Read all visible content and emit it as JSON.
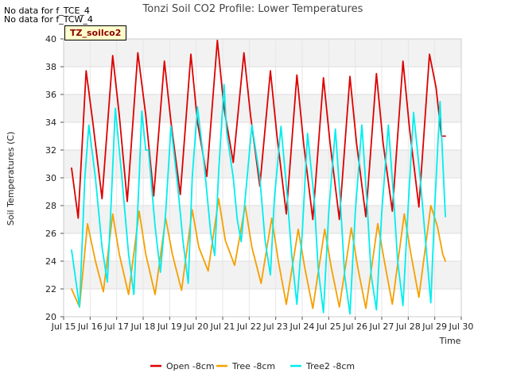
{
  "notices": [
    "No data for f_TCE_4",
    "No data for f_TCW_4"
  ],
  "site_badge": "TZ_soilco2",
  "chart_data": {
    "type": "line",
    "title": "Tonzi Soil CO2 Profile: Lower Temperatures",
    "xlabel": "Time",
    "ylabel": "Soil Temperatures (C)",
    "xlim": [
      15,
      30
    ],
    "ylim": [
      20,
      40
    ],
    "x_ticks": [
      15,
      16,
      17,
      18,
      19,
      20,
      21,
      22,
      23,
      24,
      25,
      26,
      27,
      28,
      29,
      30
    ],
    "x_tick_labels": [
      "Jul 15",
      "Jul 16",
      "Jul 17",
      "Jul 18",
      "Jul 19",
      "Jul 20",
      "Jul 21",
      "Jul 22",
      "Jul 23",
      "Jul 24",
      "Jul 25",
      "Jul 26",
      "Jul 27",
      "Jul 28",
      "Jul 29",
      "Jul 30"
    ],
    "y_ticks": [
      20,
      22,
      24,
      26,
      28,
      30,
      32,
      34,
      36,
      38,
      40
    ],
    "grid": true,
    "legend": "bottom-center",
    "series": [
      {
        "name": "Open -8cm",
        "color": "#dd0000",
        "x": [
          15.3,
          15.55,
          15.85,
          16.1,
          16.45,
          16.85,
          17.1,
          17.4,
          17.8,
          18.1,
          18.4,
          18.8,
          19.05,
          19.4,
          19.8,
          20.05,
          20.4,
          20.8,
          21.05,
          21.4,
          21.8,
          22.05,
          22.4,
          22.8,
          23.05,
          23.4,
          23.8,
          24.05,
          24.4,
          24.8,
          25.05,
          25.4,
          25.8,
          26.05,
          26.4,
          26.8,
          27.05,
          27.4,
          27.8,
          28.05,
          28.4,
          28.8,
          29.05,
          29.25,
          29.4
        ],
        "y": [
          30.7,
          27.1,
          37.7,
          34.0,
          28.5,
          38.8,
          34.5,
          28.3,
          39.0,
          34.5,
          28.7,
          38.4,
          34.0,
          28.8,
          38.9,
          34.0,
          30.1,
          39.9,
          35.0,
          31.1,
          39.0,
          34.5,
          29.4,
          37.7,
          33.0,
          27.4,
          37.4,
          32.5,
          27.0,
          37.2,
          32.5,
          27.0,
          37.3,
          32.5,
          27.2,
          37.5,
          32.5,
          27.6,
          38.4,
          33.5,
          27.9,
          38.9,
          36.5,
          33.0,
          33.0
        ]
      },
      {
        "name": "Tree -8cm",
        "color": "#f5a000",
        "x": [
          15.3,
          15.6,
          15.9,
          16.2,
          16.5,
          16.85,
          17.1,
          17.45,
          17.85,
          18.1,
          18.45,
          18.85,
          19.1,
          19.45,
          19.85,
          20.1,
          20.45,
          20.85,
          21.1,
          21.45,
          21.85,
          22.1,
          22.45,
          22.85,
          23.1,
          23.4,
          23.85,
          24.1,
          24.4,
          24.85,
          25.1,
          25.4,
          25.85,
          26.1,
          26.4,
          26.85,
          27.1,
          27.4,
          27.85,
          28.1,
          28.4,
          28.85,
          29.1,
          29.3,
          29.4
        ],
        "y": [
          22.0,
          20.7,
          26.7,
          24.0,
          21.8,
          27.4,
          24.5,
          21.6,
          27.6,
          24.5,
          21.6,
          27.1,
          24.5,
          21.9,
          27.7,
          25.0,
          23.3,
          28.5,
          25.5,
          23.7,
          28.0,
          25.0,
          22.4,
          27.1,
          24.0,
          20.9,
          26.3,
          23.5,
          20.6,
          26.3,
          23.5,
          20.7,
          26.4,
          23.5,
          20.6,
          26.7,
          24.0,
          20.9,
          27.4,
          24.5,
          21.4,
          28.0,
          26.5,
          24.5,
          24.0
        ]
      },
      {
        "name": "Tree2 -8cm",
        "color": "#00eeee",
        "x": [
          15.3,
          15.6,
          15.8,
          15.95,
          16.2,
          16.45,
          16.65,
          16.8,
          16.95,
          17.2,
          17.45,
          17.65,
          17.85,
          17.95,
          18.1,
          18.2,
          18.45,
          18.65,
          18.85,
          19.05,
          19.3,
          19.5,
          19.7,
          19.85,
          20.05,
          20.3,
          20.55,
          20.7,
          20.85,
          21.05,
          21.15,
          21.4,
          21.55,
          21.7,
          21.85,
          22.1,
          22.4,
          22.6,
          22.8,
          22.95,
          23.2,
          23.4,
          23.6,
          23.8,
          24.0,
          24.2,
          24.45,
          24.6,
          24.8,
          25.0,
          25.25,
          25.45,
          25.6,
          25.8,
          26.0,
          26.25,
          26.45,
          26.6,
          26.8,
          27.0,
          27.25,
          27.45,
          27.6,
          27.8,
          28.0,
          28.2,
          28.45,
          28.65,
          28.85,
          29.0,
          29.2,
          29.4
        ],
        "y": [
          24.8,
          20.7,
          30.0,
          33.8,
          30.0,
          25.0,
          22.5,
          28.5,
          35.0,
          30.0,
          24.5,
          21.6,
          30.0,
          34.8,
          32.0,
          32.0,
          26.5,
          23.2,
          27.5,
          33.7,
          29.5,
          25.5,
          22.4,
          30.0,
          35.1,
          31.0,
          26.0,
          24.4,
          30.5,
          36.7,
          33.3,
          30.0,
          27.0,
          25.4,
          28.5,
          33.8,
          30.0,
          25.5,
          23.0,
          28.5,
          33.7,
          29.5,
          24.5,
          20.9,
          26.0,
          33.2,
          28.5,
          23.5,
          20.3,
          27.5,
          33.5,
          28.0,
          23.0,
          20.2,
          27.5,
          33.8,
          28.0,
          23.0,
          20.5,
          27.5,
          33.8,
          28.5,
          24.0,
          20.8,
          28.0,
          34.7,
          30.0,
          25.5,
          21.0,
          28.0,
          35.5,
          27.2
        ]
      }
    ]
  }
}
